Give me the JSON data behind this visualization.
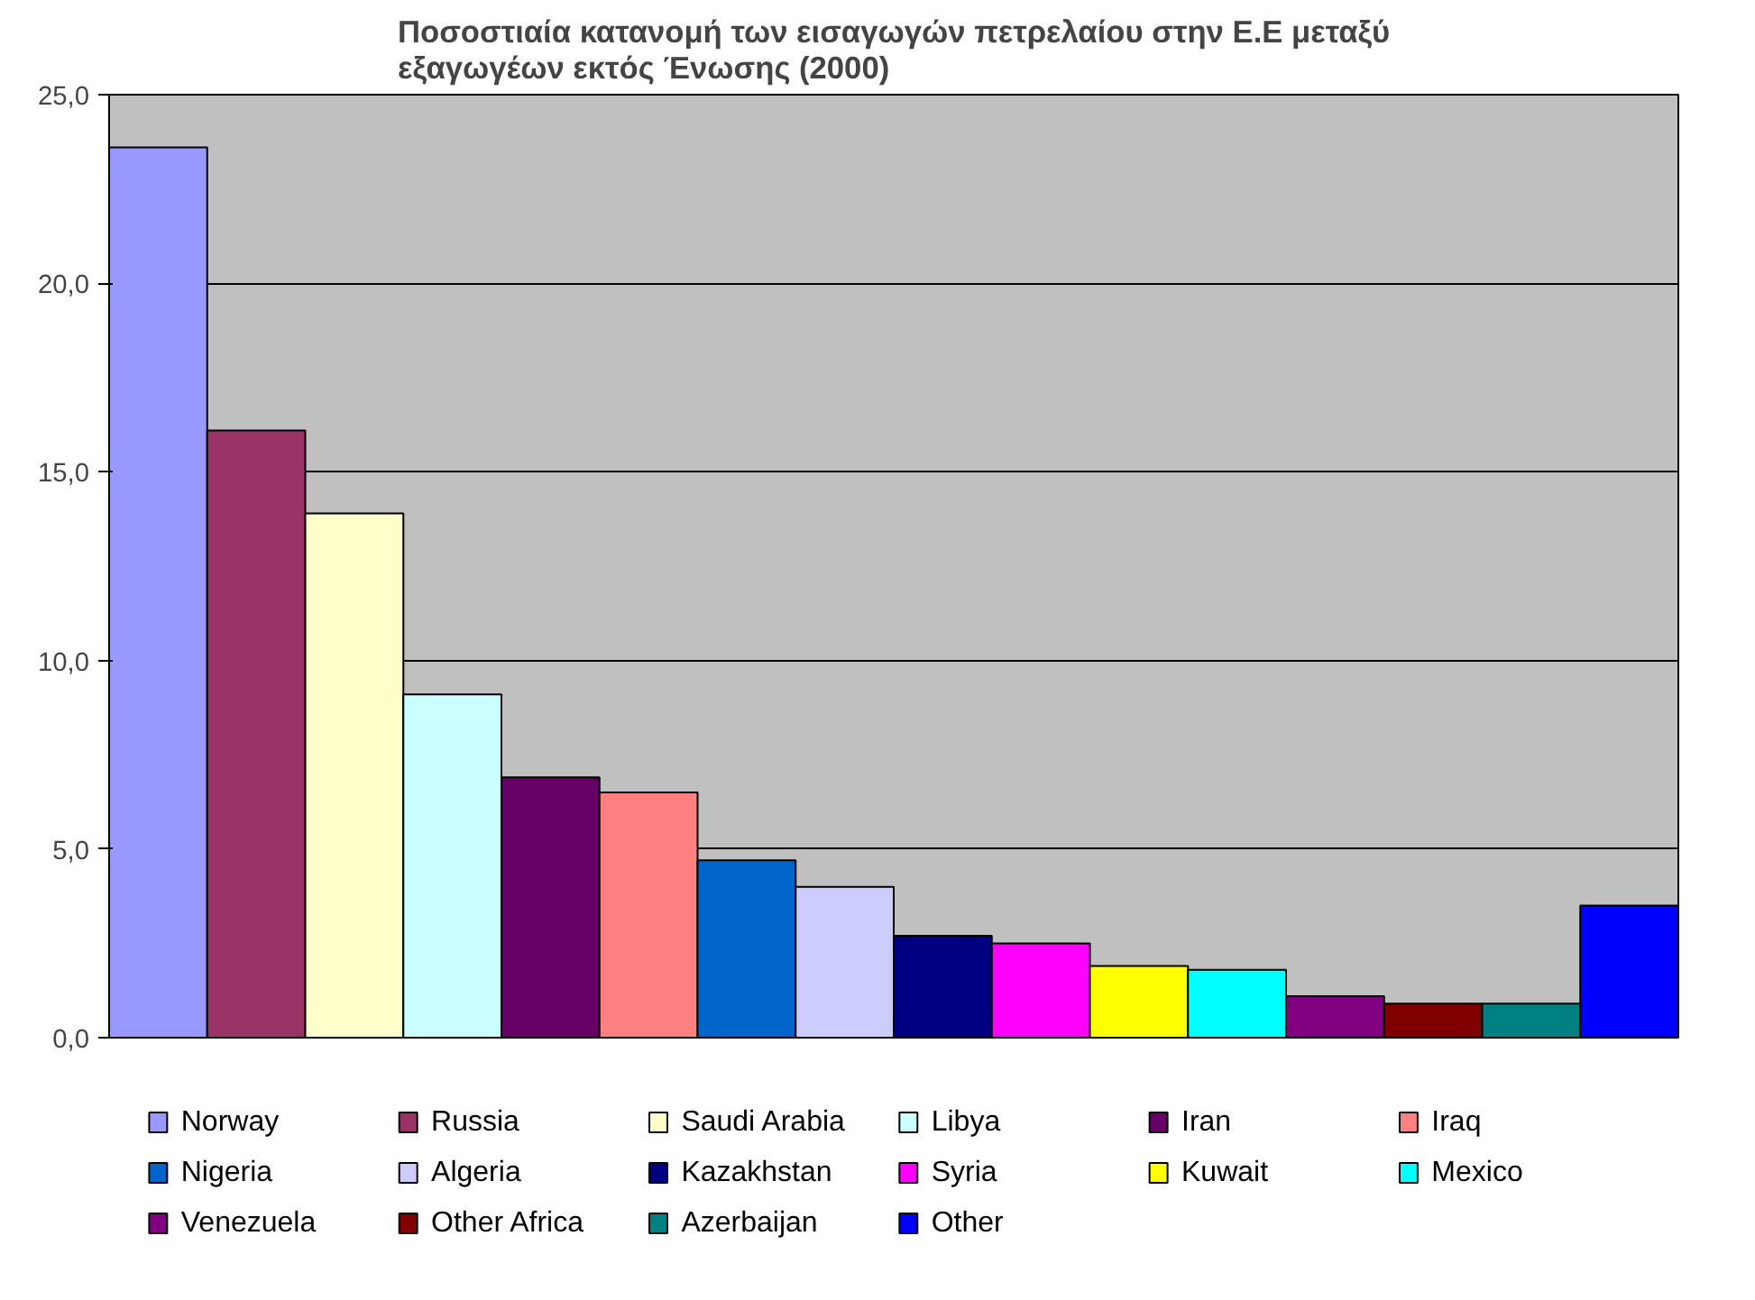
{
  "chart_data": {
    "type": "bar",
    "title": "Ποσοστιαία κατανομή των εισαγωγών πετρελαίου στην Ε.Ε μεταξύ\nεξαγωγέων εκτός Ένωσης (2000)",
    "categories": [
      null
    ],
    "series": [
      {
        "name": "Norway",
        "color": "#9999ff",
        "values": [
          23.6
        ]
      },
      {
        "name": "Russia",
        "color": "#993366",
        "values": [
          16.1
        ]
      },
      {
        "name": "Saudi Arabia",
        "color": "#ffffcc",
        "values": [
          13.9
        ]
      },
      {
        "name": "Libya",
        "color": "#ccffff",
        "values": [
          9.1
        ]
      },
      {
        "name": "Iran",
        "color": "#660066",
        "values": [
          6.9
        ]
      },
      {
        "name": "Iraq",
        "color": "#ff8080",
        "values": [
          6.5
        ]
      },
      {
        "name": "Nigeria",
        "color": "#0066cc",
        "values": [
          4.7
        ]
      },
      {
        "name": "Algeria",
        "color": "#ccccff",
        "values": [
          4.0
        ]
      },
      {
        "name": "Kazakhstan",
        "color": "#000080",
        "values": [
          2.7
        ]
      },
      {
        "name": "Syria",
        "color": "#ff00ff",
        "values": [
          2.5
        ]
      },
      {
        "name": "Kuwait",
        "color": "#ffff00",
        "values": [
          1.9
        ]
      },
      {
        "name": "Mexico",
        "color": "#00ffff",
        "values": [
          1.8
        ]
      },
      {
        "name": "Venezuela",
        "color": "#800080",
        "values": [
          1.1
        ]
      },
      {
        "name": "Other Africa",
        "color": "#800000",
        "values": [
          0.9
        ]
      },
      {
        "name": "Azerbaijan",
        "color": "#008080",
        "values": [
          0.9
        ]
      },
      {
        "name": "Other",
        "color": "#0000ff",
        "values": [
          3.5
        ]
      }
    ],
    "ylim": [
      0,
      25
    ],
    "yticks": [
      {
        "value": 0,
        "label": "0,0"
      },
      {
        "value": 5,
        "label": "5,0"
      },
      {
        "value": 10,
        "label": "10,0"
      },
      {
        "value": 15,
        "label": "15,0"
      },
      {
        "value": 20,
        "label": "20,0"
      },
      {
        "value": 25,
        "label": "25,0"
      }
    ],
    "grid": "y",
    "legend": "bottom",
    "tick_labels": "y"
  }
}
